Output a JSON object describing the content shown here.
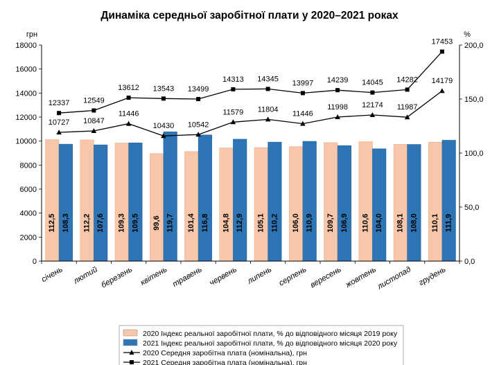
{
  "chart_data": {
    "type": "bar",
    "title": "Динаміка середньої заробітної плати у 2020–2021 роках",
    "ylabel_left": "грн",
    "ylabel_right": "%",
    "ylim_left": [
      0,
      18000
    ],
    "ylim_right": [
      0,
      200
    ],
    "yticks_left": [
      "0",
      "2000",
      "4000",
      "6000",
      "8000",
      "10000",
      "12000",
      "14000",
      "16000",
      "18000"
    ],
    "yticks_right": [
      "0,0",
      "50,0",
      "100,0",
      "150,0",
      "200,0"
    ],
    "categories": [
      "січень",
      "лютий",
      "березень",
      "квітень",
      "травень",
      "червень",
      "липень",
      "серпень",
      "вересень",
      "жовтень",
      "листопад",
      "грудень"
    ],
    "series": [
      {
        "name": "2020 Індекс реальної заробітної плати, % до відповідного місяця 2019 року",
        "kind": "bar",
        "axis": "right",
        "color": "#f8c7a9",
        "values": [
          112.5,
          112.2,
          109.3,
          99.6,
          101.4,
          104.8,
          105.1,
          106.0,
          109.7,
          110.6,
          108.1,
          110.1
        ],
        "labels": [
          "112,5",
          "112,2",
          "109,3",
          "99,6",
          "101,4",
          "104,8",
          "105,1",
          "106,0",
          "109,7",
          "110,6",
          "108,1",
          "110,1"
        ]
      },
      {
        "name": "2021 Індекс реальної заробітної плати, % до відповідного місяця 2020 року",
        "kind": "bar",
        "axis": "right",
        "color": "#2e75b6",
        "values": [
          108.3,
          107.6,
          109.5,
          119.7,
          116.8,
          112.9,
          110.2,
          110.9,
          106.9,
          104.0,
          108.0,
          111.9
        ],
        "labels": [
          "108,3",
          "107,6",
          "109,5",
          "119,7",
          "116,8",
          "112,9",
          "110,2",
          "110,9",
          "106,9",
          "104,0",
          "108,0",
          "111,9"
        ]
      },
      {
        "name": "2020 Середня заробітна плата (номінальна), грн",
        "kind": "line",
        "axis": "left",
        "marker": "triangle",
        "color": "#000000",
        "values": [
          10727,
          10847,
          11446,
          10430,
          10542,
          11579,
          11804,
          11446,
          11998,
          12174,
          11987,
          14179
        ],
        "labels": [
          "10727",
          "10847",
          "11446",
          "10430",
          "10542",
          "11579",
          "11804",
          "11446",
          "11998",
          "12174",
          "11987",
          "14179"
        ]
      },
      {
        "name": "2021 Середня заробітна плата (номінальна), грн",
        "kind": "line",
        "axis": "left",
        "marker": "square",
        "color": "#000000",
        "values": [
          12337,
          12549,
          13612,
          13543,
          13499,
          14313,
          14345,
          13997,
          14239,
          14045,
          14282,
          17453
        ],
        "labels": [
          "12337",
          "12549",
          "13612",
          "13543",
          "13499",
          "14313",
          "14345",
          "13997",
          "14239",
          "14045",
          "14282",
          "17453"
        ]
      }
    ],
    "legend_position": "bottom",
    "grid": false
  }
}
